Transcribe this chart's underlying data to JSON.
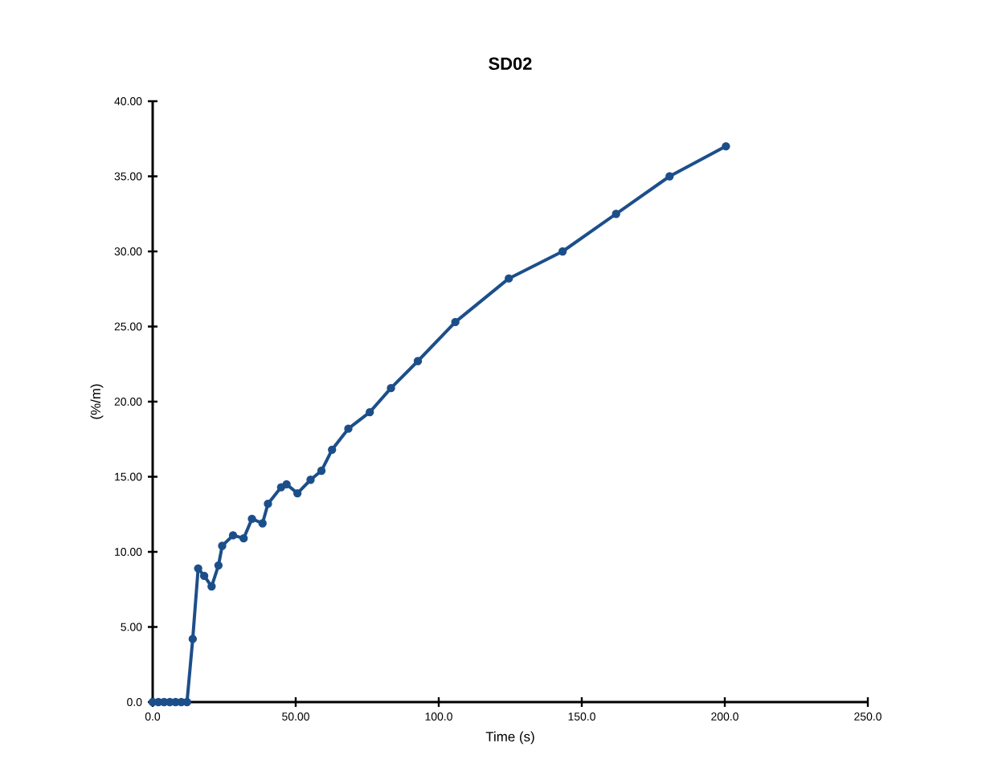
{
  "chart_data": {
    "type": "line",
    "title": "SD02",
    "xlabel": "Time (s)",
    "ylabel": "(%/m)",
    "xlim": [
      0,
      250
    ],
    "ylim": [
      0,
      40
    ],
    "xticks": [
      {
        "value": 0,
        "label": "0.0"
      },
      {
        "value": 50,
        "label": "50.00"
      },
      {
        "value": 100,
        "label": "100.0"
      },
      {
        "value": 150,
        "label": "150.0"
      },
      {
        "value": 200,
        "label": "200.0"
      },
      {
        "value": 250,
        "label": "250.0"
      }
    ],
    "yticks": [
      {
        "value": 0,
        "label": "0.0"
      },
      {
        "value": 5,
        "label": "5.00"
      },
      {
        "value": 10,
        "label": "10.00"
      },
      {
        "value": 15,
        "label": "15.00"
      },
      {
        "value": 20,
        "label": "20.00"
      },
      {
        "value": 25,
        "label": "25.00"
      },
      {
        "value": 30,
        "label": "30.00"
      },
      {
        "value": 35,
        "label": "35.00"
      },
      {
        "value": 40,
        "label": "40.00"
      }
    ],
    "grid": false,
    "marker": "circle",
    "line_style": "solid",
    "series": [
      {
        "color": "#1c4f8a",
        "x": [
          0,
          2,
          4,
          6,
          8,
          10,
          12,
          14,
          15.9,
          18,
          20.6,
          23,
          24.3,
          28.1,
          31.8,
          34.7,
          38.4,
          40.3,
          44.9,
          46.8,
          50.6,
          55.2,
          59,
          62.7,
          68.4,
          75.9,
          83.3,
          92.7,
          105.8,
          124.5,
          143.3,
          162,
          180.7,
          200.4
        ],
        "values": [
          0,
          0,
          0,
          0,
          0,
          0,
          0,
          4.2,
          8.9,
          8.4,
          7.7,
          9.1,
          10.4,
          11.1,
          10.9,
          12.2,
          11.9,
          13.2,
          14.3,
          14.5,
          13.9,
          14.8,
          15.4,
          16.8,
          18.2,
          19.3,
          20.9,
          22.7,
          25.3,
          28.2,
          30.0,
          32.5,
          35.0,
          37.0
        ]
      }
    ]
  }
}
